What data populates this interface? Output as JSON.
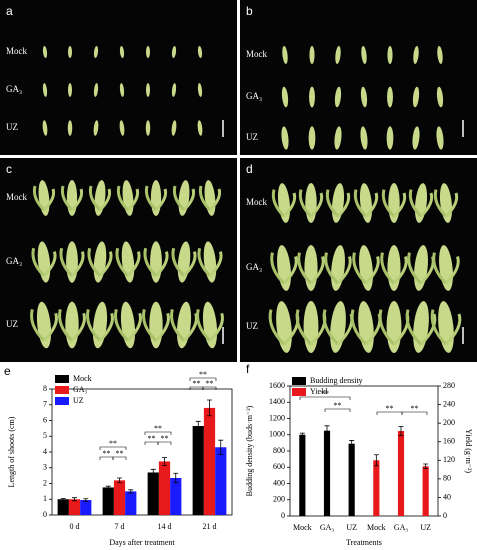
{
  "panels": [
    {
      "label": "a",
      "rows": [
        "Mock",
        "GA₃",
        "UZ"
      ]
    },
    {
      "label": "b",
      "rows": [
        "Mock",
        "GA₃",
        "UZ"
      ]
    },
    {
      "label": "c",
      "rows": [
        "Mock",
        "GA₃",
        "UZ"
      ]
    },
    {
      "label": "d",
      "rows": [
        "Mock",
        "GA₃",
        "UZ"
      ]
    }
  ],
  "chart_data": [
    {
      "type": "bar",
      "label": "e",
      "xlabel": "Days after treatment",
      "ylabel": "Length of shoots (cm)",
      "categories": [
        "0 d",
        "7 d",
        "14 d",
        "21 d"
      ],
      "series": [
        {
          "name": "Mock",
          "color": "#000000",
          "values": [
            1.0,
            1.75,
            2.7,
            5.65
          ],
          "errors": [
            0.05,
            0.08,
            0.2,
            0.3
          ]
        },
        {
          "name": "GA₃",
          "color": "#e8191b",
          "values": [
            1.0,
            2.2,
            3.4,
            6.8
          ],
          "errors": [
            0.1,
            0.15,
            0.25,
            0.5
          ]
        },
        {
          "name": "UZ",
          "color": "#1a1aff",
          "values": [
            0.95,
            1.5,
            2.35,
            4.3
          ],
          "errors": [
            0.08,
            0.1,
            0.3,
            0.45
          ]
        }
      ],
      "ylim": [
        0,
        8
      ],
      "yticks": [
        0,
        1,
        2,
        3,
        4,
        5,
        6,
        7,
        8
      ],
      "annotations": [
        "**",
        "**",
        "**",
        "**",
        "**",
        "**",
        "**",
        "**",
        "**"
      ]
    },
    {
      "type": "bar",
      "label": "f",
      "xlabel": "Treatments",
      "ylabel": "Budding density (buds·m⁻²)",
      "y2label": "Yield (g·m⁻²)",
      "categories": [
        "Mock",
        "GA₃",
        "UZ",
        "Mock",
        "GA₃",
        "UZ"
      ],
      "series": [
        {
          "name": "Budding density",
          "color": "#000000",
          "values": [
            1000,
            1050,
            890,
            null,
            null,
            null
          ],
          "errors": [
            20,
            60,
            40,
            null,
            null,
            null
          ]
        },
        {
          "name": "Yield",
          "color": "#e8191b",
          "axis": "y2",
          "values": [
            null,
            null,
            null,
            120,
            183,
            107
          ],
          "errors": [
            null,
            null,
            null,
            12,
            10,
            5
          ]
        }
      ],
      "ylim": [
        0,
        1600
      ],
      "yticks": [
        0,
        200,
        400,
        600,
        800,
        1000,
        1200,
        1400,
        1600
      ],
      "y2lim": [
        0,
        280
      ],
      "y2ticks": [
        0,
        40,
        80,
        120,
        160,
        200,
        240,
        280
      ],
      "annotations": [
        "**",
        "**",
        "**",
        "**"
      ]
    }
  ]
}
